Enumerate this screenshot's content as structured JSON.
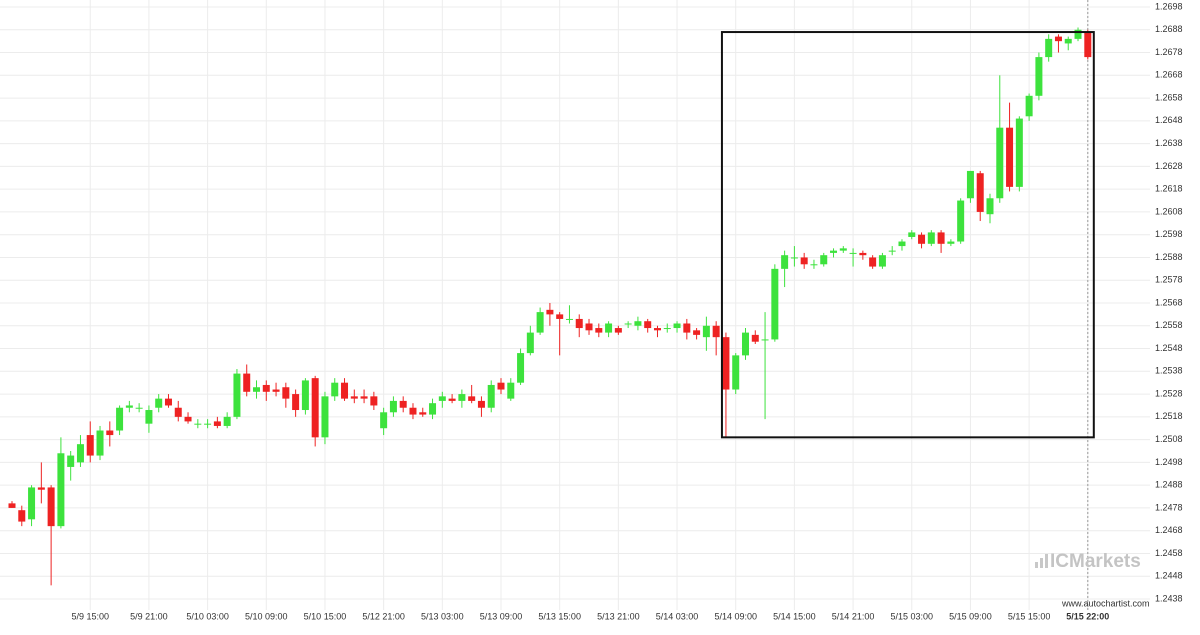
{
  "chart_data": {
    "type": "candlestick",
    "categories": [
      null,
      null,
      null,
      null,
      null,
      null,
      null,
      null,
      "5/9 15:00",
      null,
      null,
      null,
      null,
      null,
      "5/9 21:00",
      null,
      null,
      null,
      null,
      null,
      "5/10 03:00",
      null,
      null,
      null,
      null,
      null,
      "5/10 09:00",
      null,
      null,
      null,
      null,
      null,
      "5/10 15:00",
      null,
      null,
      null,
      null,
      null,
      "5/12 21:00",
      null,
      null,
      null,
      null,
      null,
      "5/13 03:00",
      null,
      null,
      null,
      null,
      null,
      "5/13 09:00",
      null,
      null,
      null,
      null,
      null,
      "5/13 15:00",
      null,
      null,
      null,
      null,
      null,
      "5/13 21:00",
      null,
      null,
      null,
      null,
      null,
      "5/14 03:00",
      null,
      null,
      null,
      null,
      null,
      "5/14 09:00",
      null,
      null,
      null,
      null,
      null,
      "5/14 15:00",
      null,
      null,
      null,
      null,
      null,
      "5/14 21:00",
      null,
      null,
      null,
      null,
      null,
      "5/15 03:00",
      null,
      null,
      null,
      null,
      null,
      "5/15 09:00",
      null,
      null,
      null,
      null,
      null,
      "5/15 15:00",
      null,
      null,
      null,
      null,
      null,
      "5/15 22:00"
    ],
    "open": [
      1.248,
      1.2477,
      1.2473,
      1.2487,
      1.2487,
      1.247,
      1.2496,
      1.2498,
      1.251,
      1.2501,
      1.2512,
      1.2512,
      1.2522,
      1.2522,
      1.2515,
      1.2522,
      1.2526,
      1.2522,
      1.2518,
      1.2515,
      1.2515,
      1.2516,
      1.2514,
      1.2518,
      1.2537,
      1.2529,
      1.2532,
      1.253,
      1.2531,
      1.2528,
      1.2521,
      1.2535,
      1.2509,
      1.2527,
      1.2533,
      1.2527,
      1.2527,
      1.2527,
      1.2513,
      1.252,
      1.2525,
      1.2522,
      1.252,
      1.2519,
      1.2525,
      1.2526,
      1.2525,
      1.2527,
      1.2525,
      1.2522,
      1.2533,
      1.2526,
      1.2533,
      1.2546,
      1.2555,
      1.2565,
      1.2563,
      1.2561,
      1.2561,
      1.2559,
      1.2557,
      1.2555,
      1.2557,
      1.2559,
      1.2558,
      1.256,
      1.2557,
      1.2557,
      1.2557,
      1.2559,
      1.2556,
      1.2553,
      1.2558,
      1.2553,
      1.253,
      1.2545,
      1.2554,
      1.2552,
      1.2552,
      1.2583,
      1.2588,
      1.2588,
      1.2585,
      1.2585,
      1.259,
      1.2591,
      1.259,
      1.259,
      1.2588,
      1.2584,
      1.2591,
      1.2593,
      1.2597,
      1.2598,
      1.2594,
      1.2599,
      1.2594,
      1.2595,
      1.2614,
      1.2625,
      1.2607,
      1.2614,
      1.2645,
      1.2619,
      1.265,
      1.2659,
      1.2676,
      1.2685,
      1.2682,
      1.2684,
      1.2687
    ],
    "high": [
      1.2481,
      1.2479,
      1.2488,
      1.2498,
      1.2488,
      1.2509,
      1.2503,
      1.251,
      1.2516,
      1.2514,
      1.2516,
      1.2523,
      1.2525,
      1.2524,
      1.2523,
      1.2528,
      1.2528,
      1.2525,
      1.252,
      1.2517,
      1.2517,
      1.2518,
      1.252,
      1.2539,
      1.2541,
      1.2534,
      1.2534,
      1.2533,
      1.2533,
      1.253,
      1.2535,
      1.2536,
      1.2529,
      1.2535,
      1.2535,
      1.253,
      1.253,
      1.2529,
      1.2522,
      1.2527,
      1.2527,
      1.2524,
      1.2522,
      1.2526,
      1.2529,
      1.2528,
      1.253,
      1.2532,
      1.2527,
      1.2534,
      1.2535,
      1.2535,
      1.2548,
      1.2558,
      1.2566,
      1.2568,
      1.2564,
      1.2567,
      1.2563,
      1.2561,
      1.2559,
      1.256,
      1.2558,
      1.256,
      1.2562,
      1.2561,
      1.2558,
      1.2559,
      1.256,
      1.2561,
      1.2557,
      1.2562,
      1.256,
      1.2555,
      1.2546,
      1.2557,
      1.2556,
      1.2564,
      1.2585,
      1.2591,
      1.2593,
      1.259,
      1.2587,
      1.259,
      1.2592,
      1.2593,
      1.2592,
      1.2591,
      1.2589,
      1.259,
      1.2593,
      1.2596,
      1.26,
      1.2599,
      1.26,
      1.26,
      1.2596,
      1.2614,
      1.2626,
      1.2626,
      1.2616,
      1.2668,
      1.2656,
      1.265,
      1.266,
      1.2678,
      1.2686,
      1.2686,
      1.2685,
      1.2689,
      1.2688
    ],
    "low": [
      1.2478,
      1.247,
      1.247,
      1.248,
      1.2444,
      1.2469,
      1.249,
      1.2496,
      1.2498,
      1.2499,
      1.2505,
      1.251,
      1.252,
      1.252,
      1.2511,
      1.252,
      1.2522,
      1.2516,
      1.2515,
      1.2513,
      1.2513,
      1.2513,
      1.2513,
      1.2517,
      1.2527,
      1.2526,
      1.2525,
      1.2527,
      1.2522,
      1.2518,
      1.2519,
      1.2505,
      1.2506,
      1.2525,
      1.2525,
      1.2524,
      1.2524,
      1.2521,
      1.251,
      1.2518,
      1.252,
      1.2517,
      1.2518,
      1.2517,
      1.2522,
      1.2524,
      1.2522,
      1.2524,
      1.2518,
      1.252,
      1.2528,
      1.2525,
      1.2532,
      1.2545,
      1.2554,
      1.2558,
      1.2545,
      1.2559,
      1.2553,
      1.2554,
      1.2553,
      1.2553,
      1.2554,
      1.2557,
      1.2556,
      1.2555,
      1.2553,
      1.2555,
      1.2555,
      1.2552,
      1.2552,
      1.2547,
      1.2545,
      1.2509,
      1.2528,
      1.2543,
      1.255,
      1.2517,
      1.2551,
      1.2575,
      1.2584,
      1.2583,
      1.2583,
      1.2584,
      1.2588,
      1.259,
      1.2584,
      1.2587,
      1.2583,
      1.2583,
      1.2589,
      1.2591,
      1.2596,
      1.2592,
      1.2593,
      1.259,
      1.2593,
      1.2594,
      1.2612,
      1.2604,
      1.2603,
      1.2612,
      1.2617,
      1.2617,
      1.2648,
      1.2657,
      1.2674,
      1.2678,
      1.2679,
      1.2683,
      1.2675
    ],
    "close": [
      1.2478,
      1.2472,
      1.2487,
      1.2486,
      1.247,
      1.2502,
      1.2501,
      1.2506,
      1.2501,
      1.2512,
      1.251,
      1.2522,
      1.2523,
      1.2522,
      1.2521,
      1.2526,
      1.2523,
      1.2518,
      1.2516,
      1.2515,
      1.2515,
      1.2514,
      1.2518,
      1.2537,
      1.2529,
      1.2531,
      1.2529,
      1.2529,
      1.2526,
      1.2521,
      1.2534,
      1.2509,
      1.2527,
      1.2533,
      1.2526,
      1.2526,
      1.2526,
      1.2523,
      1.252,
      1.2525,
      1.2522,
      1.2519,
      1.2519,
      1.2524,
      1.2527,
      1.2525,
      1.2528,
      1.2525,
      1.2522,
      1.2532,
      1.253,
      1.2533,
      1.2546,
      1.2555,
      1.2564,
      1.2563,
      1.2561,
      1.2561,
      1.2557,
      1.2556,
      1.2555,
      1.2559,
      1.2555,
      1.2559,
      1.256,
      1.2557,
      1.2556,
      1.2557,
      1.2559,
      1.2555,
      1.2554,
      1.2558,
      1.2553,
      1.253,
      1.2545,
      1.2555,
      1.2551,
      1.2552,
      1.2583,
      1.2589,
      1.2588,
      1.2585,
      1.2585,
      1.2589,
      1.2591,
      1.2592,
      1.259,
      1.2589,
      1.2584,
      1.2589,
      1.2591,
      1.2595,
      1.2599,
      1.2594,
      1.2599,
      1.2594,
      1.2595,
      1.2613,
      1.2626,
      1.2608,
      1.2614,
      1.2645,
      1.2619,
      1.2649,
      1.2659,
      1.2676,
      1.2684,
      1.2683,
      1.2684,
      1.2688,
      1.2676
    ],
    "up_color": "#3de23d",
    "down_color": "#ee2222",
    "ylim": [
      1.2438,
      1.2698
    ],
    "yticks": [
      1.2438,
      1.2448,
      1.2458,
      1.2468,
      1.2478,
      1.2488,
      1.2498,
      1.2508,
      1.2518,
      1.2528,
      1.2538,
      1.2548,
      1.2558,
      1.2568,
      1.2578,
      1.2588,
      1.2598,
      1.2608,
      1.2618,
      1.2628,
      1.2638,
      1.2648,
      1.2658,
      1.2668,
      1.2678,
      1.2688,
      1.2698
    ],
    "grid": true,
    "pattern_box": {
      "from": 73,
      "to": 110,
      "low": 1.2509,
      "high": 1.2687
    },
    "watermark": "ICMarkets",
    "source": "www.autochartist.com"
  }
}
